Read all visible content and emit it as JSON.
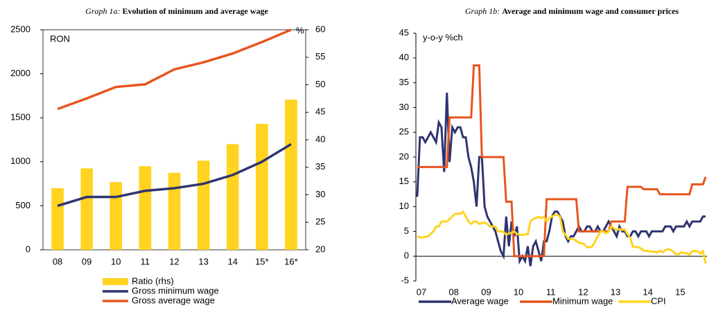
{
  "chart_data": [
    {
      "type": "combo",
      "title_label": "Graph 1a:",
      "title": "Evolution of minimum and average wage",
      "y_label": "RON",
      "y2_label": "%",
      "categories": [
        "08",
        "09",
        "10",
        "11",
        "12",
        "13",
        "14",
        "15*",
        "16*"
      ],
      "ylim": [
        0,
        2500
      ],
      "yticks": [
        0,
        500,
        1000,
        1500,
        2000,
        2500
      ],
      "y2lim": [
        20,
        60
      ],
      "y2ticks": [
        20,
        25,
        30,
        35,
        40,
        45,
        50,
        55,
        60
      ],
      "series": [
        {
          "name": "Ratio (rhs)",
          "type": "bar",
          "axis": "y2",
          "color": "#ffd320",
          "values": [
            31.2,
            34.8,
            32.3,
            35.2,
            34.0,
            36.2,
            39.2,
            42.9,
            47.3
          ]
        },
        {
          "name": "Gross minimum wage",
          "type": "line",
          "color": "#2e3470",
          "values": [
            500,
            600,
            600,
            670,
            700,
            750,
            850,
            1000,
            1200
          ]
        },
        {
          "name": "Gross average wage",
          "type": "line",
          "color": "#e8541e",
          "values": [
            1600,
            1720,
            1850,
            1880,
            2050,
            2130,
            2230,
            2360,
            2500
          ]
        }
      ]
    },
    {
      "type": "line",
      "title_label": "Graph 1b:",
      "title": "Average and minimum wage and consumer prices",
      "y_label": "y-o-y %ch",
      "categories": [
        "07",
        null,
        null,
        null,
        null,
        null,
        null,
        null,
        null,
        null,
        null,
        null,
        "08",
        null,
        null,
        null,
        null,
        null,
        null,
        null,
        null,
        null,
        null,
        null,
        "09",
        null,
        null,
        null,
        null,
        null,
        null,
        null,
        null,
        null,
        null,
        null,
        "10",
        null,
        null,
        null,
        null,
        null,
        null,
        null,
        null,
        null,
        null,
        null,
        "11",
        null,
        null,
        null,
        null,
        null,
        null,
        null,
        null,
        null,
        null,
        null,
        "12",
        null,
        null,
        null,
        null,
        null,
        null,
        null,
        null,
        null,
        null,
        null,
        "13",
        null,
        null,
        null,
        null,
        null,
        null,
        null,
        null,
        null,
        null,
        null,
        "14",
        null,
        null,
        null,
        null,
        null,
        null,
        null,
        null,
        null,
        null,
        null,
        "15",
        null,
        null,
        null,
        null,
        null,
        null,
        null,
        null,
        null,
        null,
        null
      ],
      "ylim": [
        -5,
        45
      ],
      "yticks": [
        -5,
        0,
        5,
        10,
        15,
        20,
        25,
        30,
        35,
        40,
        45
      ],
      "series": [
        {
          "name": "Average wage",
          "color": "#2e3470",
          "values": [
            12,
            24,
            24,
            23,
            24,
            25,
            24,
            23,
            27,
            26,
            17,
            33,
            19,
            26,
            25,
            26,
            26,
            24,
            24,
            20,
            18,
            15,
            10,
            20,
            20,
            10,
            8,
            7,
            6,
            5,
            3,
            1,
            0,
            8,
            2,
            7,
            4,
            6,
            -1,
            0,
            -1,
            2,
            -2,
            2,
            3,
            1,
            -1,
            3,
            3,
            5,
            8,
            9,
            9,
            8,
            7,
            4,
            3,
            4,
            4,
            5,
            6,
            5,
            5,
            6,
            6,
            5,
            5,
            6,
            5,
            5,
            6,
            7,
            6,
            5,
            4,
            6,
            5,
            5,
            4,
            4,
            5,
            5,
            4,
            5,
            5,
            5,
            4,
            5,
            5,
            5,
            5,
            5,
            6,
            6,
            6,
            5,
            6,
            6,
            6,
            6,
            7,
            6,
            7,
            7,
            7,
            7,
            8,
            8
          ]
        },
        {
          "name": "Minimum wage",
          "color": "#e8541e",
          "values": [
            18,
            18,
            18,
            18,
            18,
            18,
            18,
            18,
            18,
            18,
            18,
            18,
            28,
            28,
            28,
            28,
            28,
            28,
            28,
            28,
            28,
            38.5,
            38.5,
            38.5,
            20,
            20,
            20,
            20,
            20,
            20,
            20,
            20,
            20,
            11,
            11,
            11,
            0,
            0,
            0,
            0,
            0,
            0,
            0,
            0,
            0,
            0,
            0,
            0,
            11.5,
            11.5,
            11.5,
            11.5,
            11.5,
            11.5,
            11.5,
            11.5,
            11.5,
            11.5,
            11.5,
            11.5,
            5,
            5,
            5,
            5,
            5,
            5,
            5,
            5,
            5,
            5,
            5,
            5,
            7,
            7,
            7,
            7,
            7,
            7,
            14,
            14,
            14,
            14,
            14,
            14,
            13.5,
            13.5,
            13.5,
            13.5,
            13.5,
            13.5,
            12.5,
            12.5,
            12.5,
            12.5,
            12.5,
            12.5,
            12.5,
            12.5,
            12.5,
            12.5,
            12.5,
            12.5,
            14.5,
            14.5,
            14.5,
            14.5,
            14.5,
            16
          ]
        },
        {
          "name": "CPI",
          "color": "#ffd320",
          "values": [
            4,
            3.8,
            3.8,
            3.9,
            4,
            4.5,
            5,
            6,
            6,
            7,
            7,
            7,
            7.5,
            8,
            8.5,
            8.6,
            8.5,
            9,
            8,
            7,
            6.5,
            7,
            7,
            6.5,
            6.7,
            6.8,
            6.5,
            6,
            6,
            6,
            5,
            5,
            4.9,
            4.3,
            4.6,
            4.7,
            5,
            4.5,
            4.3,
            4.3,
            4.4,
            4.4,
            7,
            7.5,
            7.7,
            7.9,
            7.7,
            7.9,
            7,
            7.6,
            8,
            8.3,
            8.4,
            7.9,
            5,
            4.3,
            3.5,
            3.5,
            3.4,
            3.1,
            2.7,
            2.6,
            2.4,
            1.8,
            1.8,
            2,
            3,
            4,
            5,
            5,
            4.6,
            5,
            6,
            5.6,
            5.3,
            5.5,
            5.3,
            5.4,
            4.4,
            3.7,
            1.9,
            1.9,
            1.8,
            1.6,
            1.1,
            1.1,
            1,
            0.9,
            0.9,
            0.7,
            1.1,
            0.8,
            1.2,
            1.4,
            1.3,
            0.9,
            0.4,
            0.4,
            0.8,
            0.6,
            0.6,
            0.3,
            1,
            1,
            1,
            0.5,
            1,
            -1.5
          ]
        }
      ]
    }
  ]
}
